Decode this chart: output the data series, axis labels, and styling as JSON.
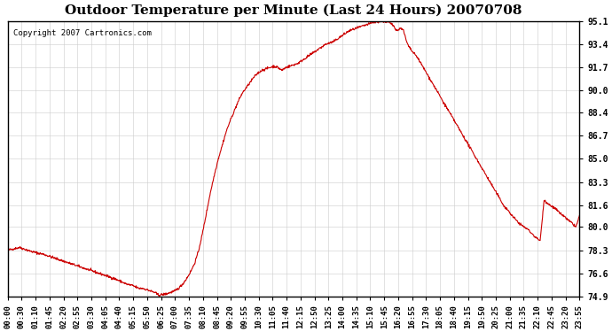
{
  "title": "Outdoor Temperature per Minute (Last 24 Hours) 20070708",
  "copyright_text": "Copyright 2007 Cartronics.com",
  "line_color": "#cc0000",
  "background_color": "#ffffff",
  "plot_bg_color": "#ffffff",
  "grid_color": "#cccccc",
  "yticks": [
    74.9,
    76.6,
    78.3,
    80.0,
    81.6,
    83.3,
    85.0,
    86.7,
    88.4,
    90.0,
    91.7,
    93.4,
    95.1
  ],
  "ylim": [
    74.9,
    95.1
  ],
  "xtick_labels": [
    "00:00",
    "00:30",
    "01:10",
    "01:45",
    "02:20",
    "02:55",
    "03:30",
    "04:05",
    "04:40",
    "05:15",
    "05:50",
    "06:25",
    "07:00",
    "07:35",
    "08:10",
    "08:45",
    "09:20",
    "09:55",
    "10:30",
    "11:05",
    "11:40",
    "12:15",
    "12:50",
    "13:25",
    "14:00",
    "14:35",
    "15:10",
    "15:45",
    "16:20",
    "16:55",
    "17:30",
    "18:05",
    "18:40",
    "19:15",
    "19:50",
    "20:25",
    "21:00",
    "21:35",
    "22:10",
    "22:45",
    "23:20",
    "23:55"
  ],
  "num_points": 1440,
  "key_points": {
    "0": 78.3,
    "30": 78.5,
    "60": 78.2,
    "90": 78.0,
    "100": 77.9,
    "120": 77.7,
    "150": 77.4,
    "180": 77.1,
    "210": 76.8,
    "240": 76.5,
    "270": 76.2,
    "285": 76.0,
    "300": 75.8,
    "315": 75.7,
    "330": 75.5,
    "340": 75.5,
    "350": 75.4,
    "355": 75.35,
    "360": 75.3,
    "370": 75.2,
    "375": 75.1,
    "380": 75.0,
    "390": 75.05,
    "400": 75.1,
    "410": 75.2,
    "420": 75.3,
    "430": 75.5,
    "440": 75.8,
    "450": 76.2,
    "460": 76.7,
    "470": 77.3,
    "480": 78.2,
    "490": 79.5,
    "500": 81.0,
    "510": 82.5,
    "520": 83.8,
    "530": 85.0,
    "540": 86.0,
    "550": 87.0,
    "560": 87.8,
    "570": 88.5,
    "580": 89.2,
    "590": 89.8,
    "600": 90.2,
    "610": 90.6,
    "620": 91.0,
    "630": 91.3,
    "640": 91.5,
    "650": 91.6,
    "660": 91.7,
    "670": 91.8,
    "680": 91.7,
    "690": 91.5,
    "700": 91.7,
    "710": 91.8,
    "720": 91.9,
    "730": 92.0,
    "740": 92.2,
    "750": 92.4,
    "760": 92.6,
    "770": 92.8,
    "780": 93.0,
    "790": 93.2,
    "800": 93.4,
    "810": 93.5,
    "820": 93.6,
    "830": 93.8,
    "840": 94.0,
    "850": 94.2,
    "860": 94.4,
    "870": 94.5,
    "880": 94.6,
    "890": 94.7,
    "900": 94.8,
    "910": 94.9,
    "920": 95.0,
    "930": 95.05,
    "940": 95.1,
    "950": 95.05,
    "960": 95.0,
    "970": 94.8,
    "975": 94.6,
    "980": 94.4,
    "985": 94.5,
    "990": 94.6,
    "995": 94.5,
    "1000": 94.0,
    "1005": 93.5,
    "1010": 93.2,
    "1015": 93.0,
    "1020": 92.8,
    "1030": 92.5,
    "1040": 92.0,
    "1050": 91.5,
    "1060": 91.0,
    "1070": 90.5,
    "1080": 90.0,
    "1090": 89.5,
    "1095": 89.2,
    "1100": 89.0,
    "1110": 88.5,
    "1120": 88.0,
    "1130": 87.5,
    "1140": 87.0,
    "1150": 86.5,
    "1160": 86.0,
    "1170": 85.5,
    "1180": 85.0,
    "1190": 84.5,
    "1200": 84.0,
    "1210": 83.5,
    "1220": 83.0,
    "1230": 82.5,
    "1240": 82.0,
    "1250": 81.5,
    "1260": 81.2,
    "1270": 80.8,
    "1280": 80.5,
    "1290": 80.2,
    "1300": 80.0,
    "1310": 79.8,
    "1320": 79.5,
    "1330": 79.2,
    "1340": 79.0,
    "1350": 82.0,
    "1360": 81.7,
    "1370": 81.5,
    "1380": 81.3,
    "1390": 81.0,
    "1400": 80.8,
    "1410": 80.5,
    "1420": 80.3,
    "1430": 80.0,
    "1439": 80.8
  }
}
